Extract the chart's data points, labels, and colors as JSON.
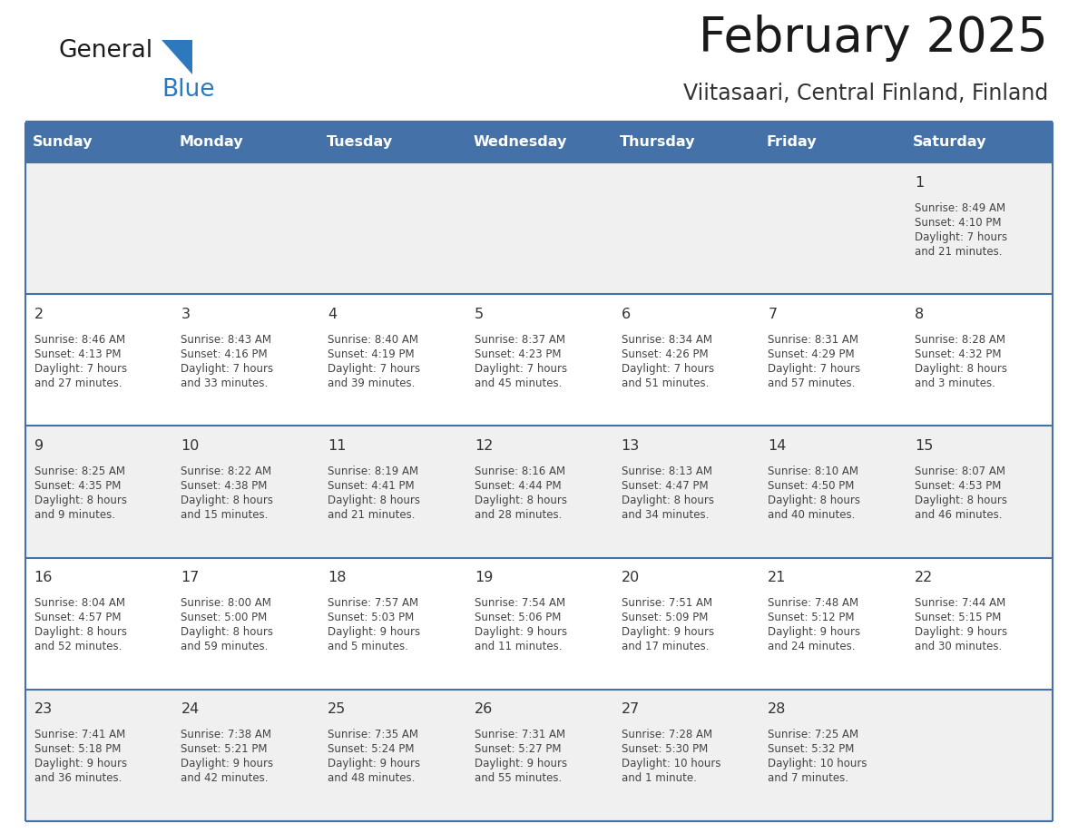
{
  "title": "February 2025",
  "subtitle": "Viitasaari, Central Finland, Finland",
  "days_of_week": [
    "Sunday",
    "Monday",
    "Tuesday",
    "Wednesday",
    "Thursday",
    "Friday",
    "Saturday"
  ],
  "header_bg": "#4472a8",
  "header_text": "#ffffff",
  "row_bg_odd": "#f0f0f0",
  "row_bg_even": "#ffffff",
  "border_color": "#4472a8",
  "day_number_color": "#333333",
  "cell_text_color": "#444444",
  "title_color": "#1a1a1a",
  "subtitle_color": "#333333",
  "logo_general_color": "#1a1a1a",
  "logo_blue_color": "#2e79bd",
  "weeks": [
    {
      "days": [
        {
          "num": "",
          "sunrise": "",
          "sunset": "",
          "daylight": ""
        },
        {
          "num": "",
          "sunrise": "",
          "sunset": "",
          "daylight": ""
        },
        {
          "num": "",
          "sunrise": "",
          "sunset": "",
          "daylight": ""
        },
        {
          "num": "",
          "sunrise": "",
          "sunset": "",
          "daylight": ""
        },
        {
          "num": "",
          "sunrise": "",
          "sunset": "",
          "daylight": ""
        },
        {
          "num": "",
          "sunrise": "",
          "sunset": "",
          "daylight": ""
        },
        {
          "num": "1",
          "sunrise": "Sunrise: 8:49 AM",
          "sunset": "Sunset: 4:10 PM",
          "daylight": "Daylight: 7 hours\nand 21 minutes."
        }
      ]
    },
    {
      "days": [
        {
          "num": "2",
          "sunrise": "Sunrise: 8:46 AM",
          "sunset": "Sunset: 4:13 PM",
          "daylight": "Daylight: 7 hours\nand 27 minutes."
        },
        {
          "num": "3",
          "sunrise": "Sunrise: 8:43 AM",
          "sunset": "Sunset: 4:16 PM",
          "daylight": "Daylight: 7 hours\nand 33 minutes."
        },
        {
          "num": "4",
          "sunrise": "Sunrise: 8:40 AM",
          "sunset": "Sunset: 4:19 PM",
          "daylight": "Daylight: 7 hours\nand 39 minutes."
        },
        {
          "num": "5",
          "sunrise": "Sunrise: 8:37 AM",
          "sunset": "Sunset: 4:23 PM",
          "daylight": "Daylight: 7 hours\nand 45 minutes."
        },
        {
          "num": "6",
          "sunrise": "Sunrise: 8:34 AM",
          "sunset": "Sunset: 4:26 PM",
          "daylight": "Daylight: 7 hours\nand 51 minutes."
        },
        {
          "num": "7",
          "sunrise": "Sunrise: 8:31 AM",
          "sunset": "Sunset: 4:29 PM",
          "daylight": "Daylight: 7 hours\nand 57 minutes."
        },
        {
          "num": "8",
          "sunrise": "Sunrise: 8:28 AM",
          "sunset": "Sunset: 4:32 PM",
          "daylight": "Daylight: 8 hours\nand 3 minutes."
        }
      ]
    },
    {
      "days": [
        {
          "num": "9",
          "sunrise": "Sunrise: 8:25 AM",
          "sunset": "Sunset: 4:35 PM",
          "daylight": "Daylight: 8 hours\nand 9 minutes."
        },
        {
          "num": "10",
          "sunrise": "Sunrise: 8:22 AM",
          "sunset": "Sunset: 4:38 PM",
          "daylight": "Daylight: 8 hours\nand 15 minutes."
        },
        {
          "num": "11",
          "sunrise": "Sunrise: 8:19 AM",
          "sunset": "Sunset: 4:41 PM",
          "daylight": "Daylight: 8 hours\nand 21 minutes."
        },
        {
          "num": "12",
          "sunrise": "Sunrise: 8:16 AM",
          "sunset": "Sunset: 4:44 PM",
          "daylight": "Daylight: 8 hours\nand 28 minutes."
        },
        {
          "num": "13",
          "sunrise": "Sunrise: 8:13 AM",
          "sunset": "Sunset: 4:47 PM",
          "daylight": "Daylight: 8 hours\nand 34 minutes."
        },
        {
          "num": "14",
          "sunrise": "Sunrise: 8:10 AM",
          "sunset": "Sunset: 4:50 PM",
          "daylight": "Daylight: 8 hours\nand 40 minutes."
        },
        {
          "num": "15",
          "sunrise": "Sunrise: 8:07 AM",
          "sunset": "Sunset: 4:53 PM",
          "daylight": "Daylight: 8 hours\nand 46 minutes."
        }
      ]
    },
    {
      "days": [
        {
          "num": "16",
          "sunrise": "Sunrise: 8:04 AM",
          "sunset": "Sunset: 4:57 PM",
          "daylight": "Daylight: 8 hours\nand 52 minutes."
        },
        {
          "num": "17",
          "sunrise": "Sunrise: 8:00 AM",
          "sunset": "Sunset: 5:00 PM",
          "daylight": "Daylight: 8 hours\nand 59 minutes."
        },
        {
          "num": "18",
          "sunrise": "Sunrise: 7:57 AM",
          "sunset": "Sunset: 5:03 PM",
          "daylight": "Daylight: 9 hours\nand 5 minutes."
        },
        {
          "num": "19",
          "sunrise": "Sunrise: 7:54 AM",
          "sunset": "Sunset: 5:06 PM",
          "daylight": "Daylight: 9 hours\nand 11 minutes."
        },
        {
          "num": "20",
          "sunrise": "Sunrise: 7:51 AM",
          "sunset": "Sunset: 5:09 PM",
          "daylight": "Daylight: 9 hours\nand 17 minutes."
        },
        {
          "num": "21",
          "sunrise": "Sunrise: 7:48 AM",
          "sunset": "Sunset: 5:12 PM",
          "daylight": "Daylight: 9 hours\nand 24 minutes."
        },
        {
          "num": "22",
          "sunrise": "Sunrise: 7:44 AM",
          "sunset": "Sunset: 5:15 PM",
          "daylight": "Daylight: 9 hours\nand 30 minutes."
        }
      ]
    },
    {
      "days": [
        {
          "num": "23",
          "sunrise": "Sunrise: 7:41 AM",
          "sunset": "Sunset: 5:18 PM",
          "daylight": "Daylight: 9 hours\nand 36 minutes."
        },
        {
          "num": "24",
          "sunrise": "Sunrise: 7:38 AM",
          "sunset": "Sunset: 5:21 PM",
          "daylight": "Daylight: 9 hours\nand 42 minutes."
        },
        {
          "num": "25",
          "sunrise": "Sunrise: 7:35 AM",
          "sunset": "Sunset: 5:24 PM",
          "daylight": "Daylight: 9 hours\nand 48 minutes."
        },
        {
          "num": "26",
          "sunrise": "Sunrise: 7:31 AM",
          "sunset": "Sunset: 5:27 PM",
          "daylight": "Daylight: 9 hours\nand 55 minutes."
        },
        {
          "num": "27",
          "sunrise": "Sunrise: 7:28 AM",
          "sunset": "Sunset: 5:30 PM",
          "daylight": "Daylight: 10 hours\nand 1 minute."
        },
        {
          "num": "28",
          "sunrise": "Sunrise: 7:25 AM",
          "sunset": "Sunset: 5:32 PM",
          "daylight": "Daylight: 10 hours\nand 7 minutes."
        },
        {
          "num": "",
          "sunrise": "",
          "sunset": "",
          "daylight": ""
        }
      ]
    }
  ]
}
